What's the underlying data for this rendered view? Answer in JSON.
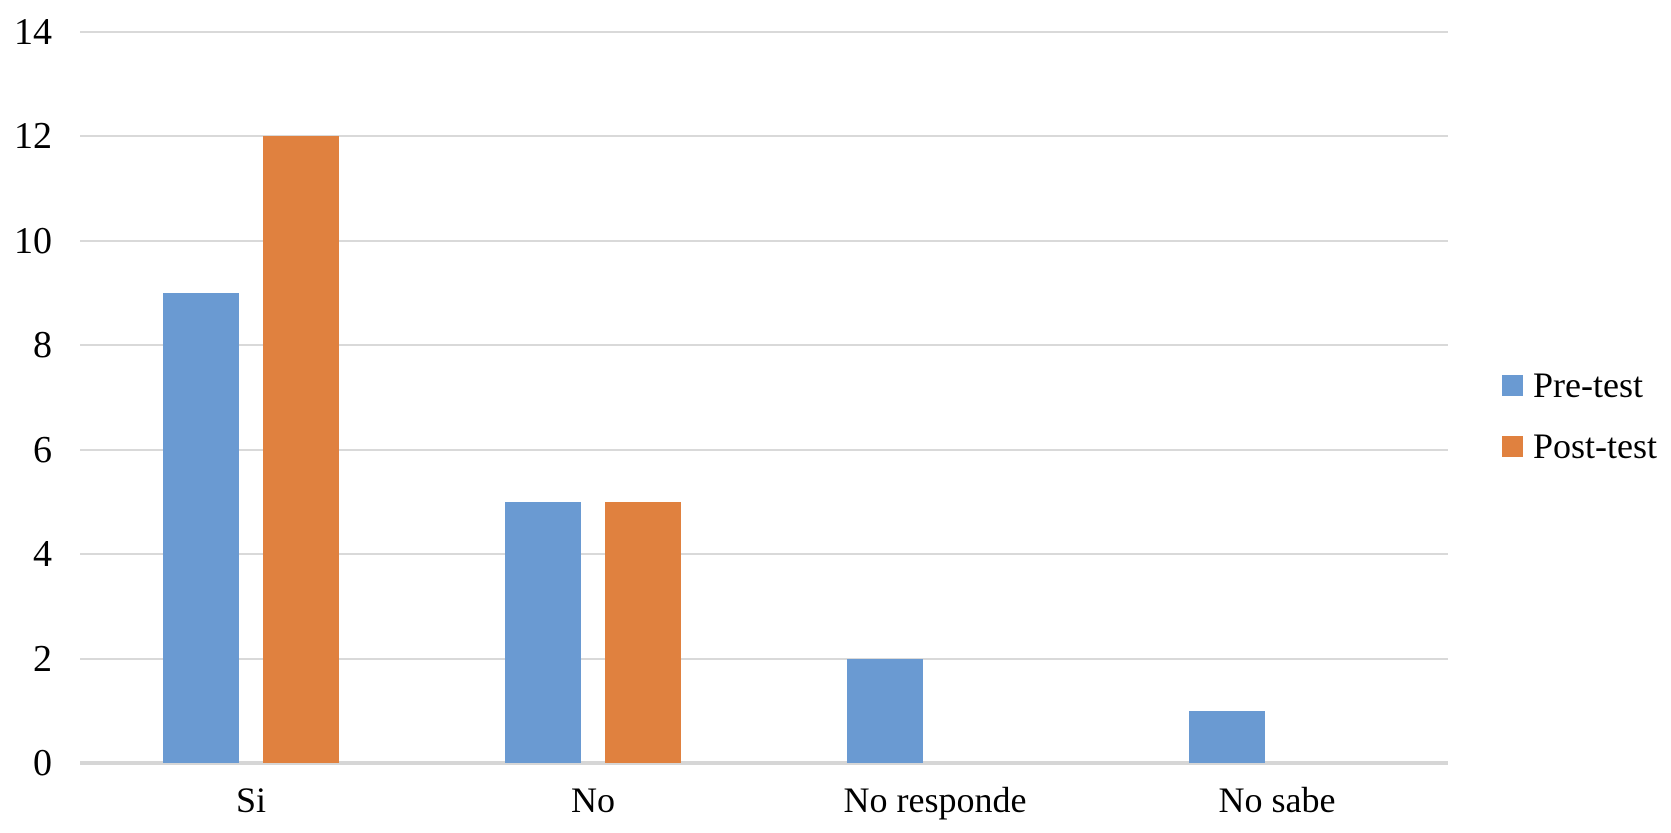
{
  "chart_data": {
    "type": "bar",
    "title": "",
    "xlabel": "",
    "ylabel": "",
    "categories": [
      "Si",
      "No",
      "No responde",
      "No sabe"
    ],
    "series": [
      {
        "name": "Pre-test",
        "color": "#6a9ad2",
        "values": [
          9,
          5,
          2,
          1
        ]
      },
      {
        "name": "Post-test",
        "color": "#e0813f",
        "values": [
          12,
          5,
          0,
          0
        ]
      }
    ],
    "ylim": [
      0,
      14
    ],
    "yticks": [
      0,
      2,
      4,
      6,
      8,
      10,
      12,
      14
    ],
    "grid": true,
    "gridline_color": "#d9d9d9",
    "axis_line_color": "#d6d6d6",
    "background_color": "#ffffff",
    "text_color": "#000000",
    "legend_position": "right",
    "legend_labels": [
      "Pre-test",
      "Post-test"
    ]
  }
}
